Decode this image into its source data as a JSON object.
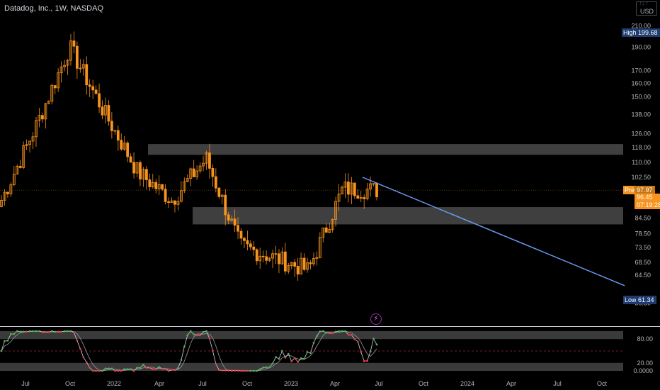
{
  "header": {
    "symbol_title": "Datadog, Inc., 1W, NASDAQ",
    "currency": "USD",
    "currency_sub": "↑↓ ↑"
  },
  "colors": {
    "background": "#000000",
    "candle": "#f7931e",
    "zone": "#4a4a4a",
    "trendline": "#6b9cf5",
    "price_line": "#f7931e",
    "stoch_k": "#d1d4dc",
    "stoch_dots_up": "#4caf50",
    "stoch_dots_down": "#f23645",
    "high_badge": "#1e3a6e",
    "low_badge": "#1e3a6e",
    "event_icon": "#9c27b0"
  },
  "price_axis": {
    "labels": [
      "210.00",
      "190.00",
      "170.00",
      "160.00",
      "150.00",
      "138.00",
      "126.00",
      "118.00",
      "110.00",
      "102.50",
      "90.50",
      "84.50",
      "78.50",
      "73.50",
      "68.50",
      "64.50",
      "56.50"
    ],
    "values": [
      210,
      190,
      170,
      160,
      150,
      138,
      126,
      118,
      110,
      102.5,
      90.5,
      84.5,
      78.5,
      73.5,
      68.5,
      64.5,
      56.5
    ],
    "scale": "log"
  },
  "time_axis": {
    "labels": [
      "Jul",
      "Oct",
      "2022",
      "Apr",
      "Jul",
      "Oct",
      "2023",
      "Apr",
      "Jul",
      "Oct",
      "2024",
      "Apr",
      "Jul",
      "Oct"
    ]
  },
  "badges": {
    "high": {
      "label": "High",
      "value": "199.68"
    },
    "low": {
      "label": "Low",
      "value": "61.34"
    },
    "pre": {
      "label": "Pre",
      "value": "97.97"
    },
    "last": {
      "value": "96.45",
      "countdown": "07:19:28"
    }
  },
  "indicator": {
    "name": "Stochastic RSI",
    "axis_labels": [
      "80.00",
      "20.00",
      "0.0000"
    ],
    "axis_values": [
      80,
      20,
      0
    ]
  },
  "chart_data": {
    "type": "candlestick",
    "title": "Datadog, Inc., 1W, NASDAQ",
    "y_scale": "log",
    "ylim": [
      52,
      222
    ],
    "high_marker": 199.68,
    "low_marker": 61.34,
    "last_price": 96.45,
    "premarket_price": 97.97,
    "zones": [
      {
        "from": 114,
        "to": 120
      },
      {
        "from": 82,
        "to": 89
      }
    ],
    "trendline": {
      "start_price": 102.5,
      "end_price": 61.34
    },
    "key_points": [
      {
        "x": "Mar 2021",
        "close": 92
      },
      {
        "x": "Aug 2021",
        "close": 130
      },
      {
        "x": "Nov 2021",
        "close": 190
      },
      {
        "x": "Jan 2022",
        "close": 140
      },
      {
        "x": "Apr 2022",
        "close": 105
      },
      {
        "x": "Jun 2022",
        "close": 92
      },
      {
        "x": "Aug 2022",
        "close": 112
      },
      {
        "x": "Oct 2022",
        "close": 74
      },
      {
        "x": "Jan 2023",
        "close": 70
      },
      {
        "x": "Apr 2023",
        "close": 66
      },
      {
        "x": "May 2023",
        "close": 97
      },
      {
        "x": "Jun 2023",
        "close": 96.45
      }
    ]
  }
}
